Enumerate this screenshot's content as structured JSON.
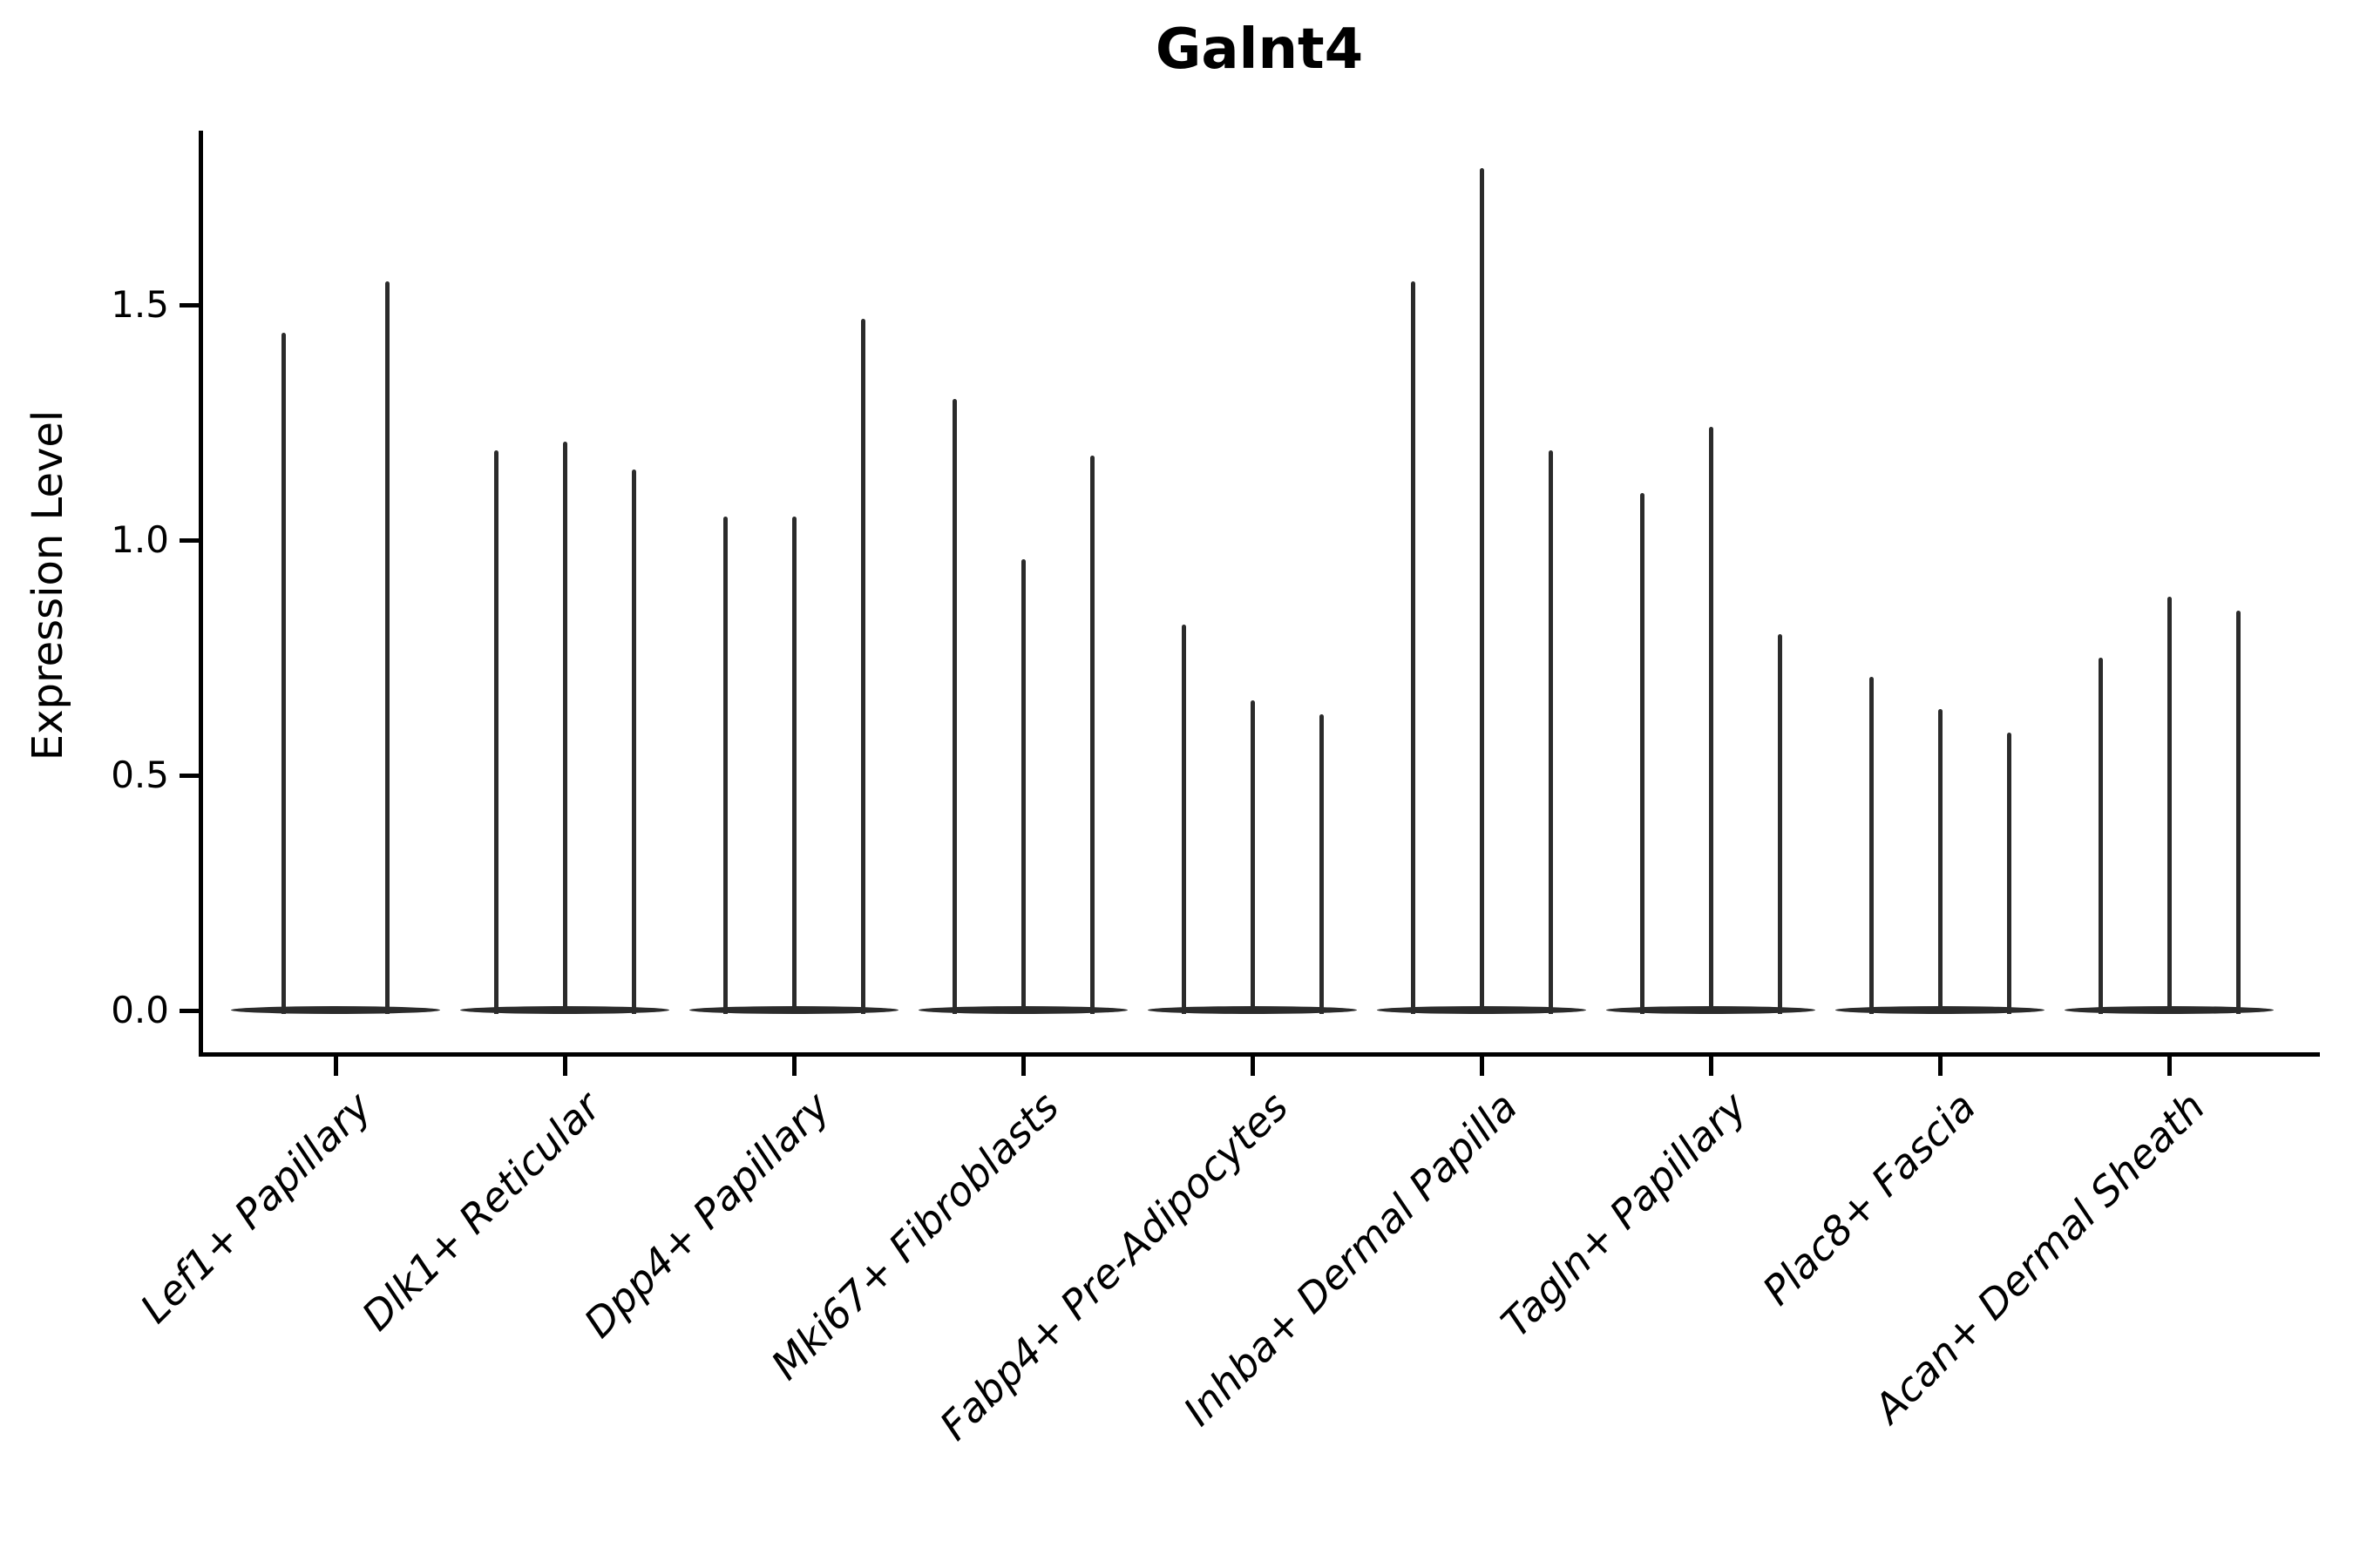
{
  "title": "Galnt4",
  "axes": {
    "y_label": "Expression Level",
    "y_tick_labels": [
      "0.0",
      "0.5",
      "1.0",
      "1.5"
    ]
  },
  "colors": {
    "violin": "#2b2b2b",
    "axis": "#000000",
    "text": "#000000",
    "background": "#ffffff"
  },
  "chart_data": {
    "type": "violin",
    "title": "Galnt4",
    "xlabel": "",
    "ylabel": "Expression Level",
    "ylim": [
      -0.09,
      1.87
    ],
    "y_ticks": [
      0.0,
      0.5,
      1.0,
      1.5
    ],
    "grid": false,
    "legend": "none",
    "description": "Single-gene violin plot; each category holds thin spike-shaped violins (mass concentrated at 0) whose spike tops mark the maximum expression level",
    "categories": [
      "Lef1+ Papillary",
      "Dlk1+ Reticular",
      "Dpp4+ Papillary",
      "Mki67+ Fibroblasts",
      "Fabp4+ Pre-Adipocytes",
      "Inhba+ Dermal Papilla",
      "Tagln+ Papillary",
      "Plac8+ Fascia",
      "Acan+ Dermal Sheath"
    ],
    "groups": [
      {
        "label": "Lef1+ Papillary",
        "values": [
          1.44,
          1.55
        ]
      },
      {
        "label": "Dlk1+ Reticular",
        "values": [
          1.19,
          1.21,
          1.15
        ]
      },
      {
        "label": "Dpp4+ Papillary",
        "values": [
          1.05,
          1.05,
          1.47
        ]
      },
      {
        "label": "Mki67+ Fibroblasts",
        "values": [
          1.3,
          0.96,
          1.18
        ]
      },
      {
        "label": "Fabp4+ Pre-Adipocytes",
        "values": [
          0.82,
          0.66,
          0.63
        ]
      },
      {
        "label": "Inhba+ Dermal Papilla",
        "values": [
          1.55,
          1.79,
          1.19
        ]
      },
      {
        "label": "Tagln+ Papillary",
        "values": [
          1.1,
          1.24,
          0.8
        ]
      },
      {
        "label": "Plac8+ Fascia",
        "values": [
          0.71,
          0.64,
          0.59
        ]
      },
      {
        "label": "Acan+ Dermal Sheath",
        "values": [
          0.75,
          0.88,
          0.85
        ]
      }
    ]
  }
}
